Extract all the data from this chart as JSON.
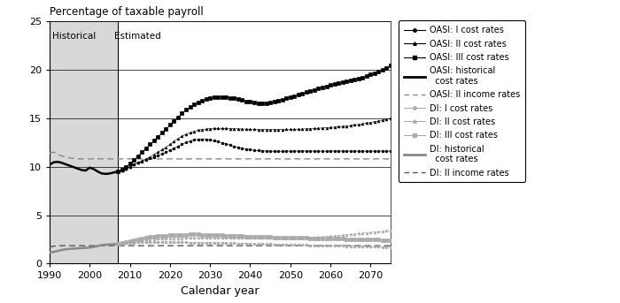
{
  "title": "Percentage of taxable payroll",
  "xlabel": "Calendar year",
  "xlim": [
    1990,
    2075
  ],
  "ylim": [
    0,
    25
  ],
  "yticks": [
    0,
    5,
    10,
    15,
    20,
    25
  ],
  "xticks": [
    1990,
    2000,
    2010,
    2020,
    2030,
    2040,
    2050,
    2060,
    2070
  ],
  "historical_end": 2007,
  "bg_historical": "#d8d8d8",
  "bg_estimated": "#ffffff",
  "oasi_hist_years": [
    1990,
    1991,
    1992,
    1993,
    1994,
    1995,
    1996,
    1997,
    1998,
    1999,
    2000,
    2001,
    2002,
    2003,
    2004,
    2005,
    2006,
    2007
  ],
  "oasi_hist_vals": [
    10.2,
    10.45,
    10.5,
    10.4,
    10.25,
    10.1,
    9.95,
    9.8,
    9.65,
    9.6,
    9.9,
    9.75,
    9.5,
    9.3,
    9.25,
    9.3,
    9.4,
    9.5
  ],
  "oasi_income_hist_years": [
    1990,
    1991,
    1992,
    1993,
    1994,
    1995,
    1996,
    1997,
    1998,
    1999,
    2000,
    2001,
    2002,
    2003,
    2004,
    2005,
    2006,
    2007
  ],
  "oasi_income_hist_vals": [
    11.4,
    11.5,
    11.3,
    11.1,
    11.0,
    10.9,
    10.85,
    10.8,
    10.8,
    10.8,
    10.8,
    10.8,
    10.8,
    10.8,
    10.8,
    10.8,
    10.8,
    10.8
  ],
  "years_est": [
    2007,
    2008,
    2009,
    2010,
    2011,
    2012,
    2013,
    2014,
    2015,
    2016,
    2017,
    2018,
    2019,
    2020,
    2021,
    2022,
    2023,
    2024,
    2025,
    2026,
    2027,
    2028,
    2029,
    2030,
    2031,
    2032,
    2033,
    2034,
    2035,
    2036,
    2037,
    2038,
    2039,
    2040,
    2041,
    2042,
    2043,
    2044,
    2045,
    2046,
    2047,
    2048,
    2049,
    2050,
    2051,
    2052,
    2053,
    2054,
    2055,
    2056,
    2057,
    2058,
    2059,
    2060,
    2061,
    2062,
    2063,
    2064,
    2065,
    2066,
    2067,
    2068,
    2069,
    2070,
    2071,
    2072,
    2073,
    2074,
    2075
  ],
  "oasi_I_est": [
    9.5,
    9.6,
    9.8,
    10.0,
    10.2,
    10.4,
    10.55,
    10.7,
    10.85,
    11.0,
    11.15,
    11.3,
    11.5,
    11.7,
    11.9,
    12.1,
    12.3,
    12.5,
    12.65,
    12.75,
    12.8,
    12.82,
    12.8,
    12.75,
    12.67,
    12.58,
    12.47,
    12.35,
    12.22,
    12.1,
    12.0,
    11.9,
    11.82,
    11.75,
    11.7,
    11.66,
    11.63,
    11.61,
    11.6,
    11.59,
    11.59,
    11.59,
    11.6,
    11.6,
    11.6,
    11.6,
    11.6,
    11.6,
    11.6,
    11.6,
    11.6,
    11.6,
    11.6,
    11.6,
    11.6,
    11.6,
    11.6,
    11.6,
    11.6,
    11.6,
    11.6,
    11.6,
    11.6,
    11.6,
    11.6,
    11.6,
    11.6,
    11.6,
    11.6
  ],
  "oasi_II_est": [
    9.5,
    9.6,
    9.8,
    10.0,
    10.2,
    10.4,
    10.6,
    10.8,
    11.0,
    11.25,
    11.5,
    11.75,
    12.0,
    12.3,
    12.6,
    12.9,
    13.15,
    13.35,
    13.5,
    13.65,
    13.75,
    13.83,
    13.88,
    13.92,
    13.94,
    13.95,
    13.95,
    13.94,
    13.93,
    13.91,
    13.9,
    13.88,
    13.87,
    13.86,
    13.85,
    13.84,
    13.84,
    13.84,
    13.84,
    13.84,
    13.84,
    13.84,
    13.85,
    13.85,
    13.86,
    13.87,
    13.88,
    13.9,
    13.92,
    13.94,
    13.96,
    13.99,
    14.02,
    14.05,
    14.08,
    14.12,
    14.16,
    14.2,
    14.25,
    14.3,
    14.36,
    14.42,
    14.49,
    14.56,
    14.64,
    14.72,
    14.8,
    14.9,
    15.0
  ],
  "oasi_III_est": [
    9.5,
    9.7,
    10.0,
    10.3,
    10.7,
    11.1,
    11.5,
    11.9,
    12.3,
    12.7,
    13.1,
    13.5,
    13.9,
    14.3,
    14.7,
    15.1,
    15.5,
    15.85,
    16.15,
    16.42,
    16.65,
    16.83,
    16.97,
    17.08,
    17.16,
    17.2,
    17.2,
    17.18,
    17.12,
    17.05,
    16.95,
    16.85,
    16.75,
    16.67,
    16.6,
    16.55,
    16.53,
    16.55,
    16.6,
    16.68,
    16.8,
    16.92,
    17.05,
    17.18,
    17.3,
    17.42,
    17.55,
    17.68,
    17.8,
    17.93,
    18.05,
    18.17,
    18.29,
    18.4,
    18.5,
    18.6,
    18.7,
    18.8,
    18.9,
    19.0,
    19.1,
    19.2,
    19.35,
    19.5,
    19.65,
    19.8,
    20.0,
    20.2,
    20.4
  ],
  "oasi_income_est_years": [
    2007,
    2075
  ],
  "oasi_income_est_vals": [
    10.8,
    10.8
  ],
  "di_hist_years": [
    1990,
    1991,
    1992,
    1993,
    1994,
    1995,
    1996,
    1997,
    1998,
    1999,
    2000,
    2001,
    2002,
    2003,
    2004,
    2005,
    2006,
    2007
  ],
  "di_hist_vals": [
    1.15,
    1.2,
    1.3,
    1.4,
    1.48,
    1.52,
    1.55,
    1.58,
    1.6,
    1.63,
    1.65,
    1.72,
    1.82,
    1.9,
    1.95,
    1.98,
    2.0,
    2.05
  ],
  "di_income_hist_years": [
    1990,
    1991,
    1992,
    1993,
    1994,
    1995,
    1996,
    1997,
    1998,
    1999,
    2000,
    2001,
    2002,
    2003,
    2004,
    2005,
    2006,
    2007
  ],
  "di_income_hist_vals": [
    1.7,
    1.8,
    1.85,
    1.85,
    1.85,
    1.85,
    1.85,
    1.85,
    1.85,
    1.85,
    1.85,
    1.85,
    1.85,
    1.85,
    1.85,
    1.85,
    1.85,
    1.85
  ],
  "di_I_est": [
    2.05,
    2.1,
    2.13,
    2.15,
    2.17,
    2.18,
    2.19,
    2.2,
    2.2,
    2.2,
    2.2,
    2.2,
    2.2,
    2.2,
    2.19,
    2.19,
    2.18,
    2.18,
    2.17,
    2.17,
    2.16,
    2.16,
    2.15,
    2.15,
    2.14,
    2.13,
    2.12,
    2.11,
    2.1,
    2.09,
    2.08,
    2.07,
    2.06,
    2.05,
    2.04,
    2.03,
    2.02,
    2.01,
    2.0,
    1.99,
    1.98,
    1.97,
    1.96,
    1.95,
    1.94,
    1.93,
    1.92,
    1.91,
    1.9,
    1.89,
    1.88,
    1.87,
    1.86,
    1.85,
    1.84,
    1.83,
    1.82,
    1.81,
    1.8,
    1.79,
    1.78,
    1.77,
    1.76,
    1.75,
    1.74,
    1.73,
    1.72,
    1.71,
    1.7
  ],
  "di_II_est": [
    2.05,
    2.1,
    2.18,
    2.25,
    2.32,
    2.38,
    2.43,
    2.47,
    2.5,
    2.52,
    2.55,
    2.57,
    2.58,
    2.6,
    2.61,
    2.62,
    2.63,
    2.64,
    2.65,
    2.65,
    2.65,
    2.65,
    2.65,
    2.65,
    2.65,
    2.65,
    2.65,
    2.65,
    2.65,
    2.65,
    2.65,
    2.65,
    2.65,
    2.65,
    2.65,
    2.65,
    2.65,
    2.65,
    2.65,
    2.65,
    2.65,
    2.65,
    2.65,
    2.65,
    2.65,
    2.66,
    2.67,
    2.68,
    2.7,
    2.72,
    2.74,
    2.77,
    2.8,
    2.83,
    2.86,
    2.9,
    2.94,
    2.98,
    3.02,
    3.06,
    3.1,
    3.14,
    3.18,
    3.22,
    3.26,
    3.3,
    3.34,
    3.38,
    3.42
  ],
  "di_III_est": [
    2.05,
    2.12,
    2.22,
    2.32,
    2.43,
    2.52,
    2.6,
    2.67,
    2.73,
    2.78,
    2.83,
    2.87,
    2.9,
    2.93,
    2.95,
    2.97,
    2.98,
    2.99,
    3.0,
    3.0,
    3.0,
    2.99,
    2.98,
    2.97,
    2.96,
    2.94,
    2.92,
    2.9,
    2.88,
    2.86,
    2.84,
    2.82,
    2.8,
    2.78,
    2.77,
    2.76,
    2.75,
    2.74,
    2.73,
    2.72,
    2.71,
    2.7,
    2.69,
    2.68,
    2.67,
    2.66,
    2.65,
    2.64,
    2.63,
    2.62,
    2.61,
    2.6,
    2.59,
    2.58,
    2.57,
    2.56,
    2.55,
    2.54,
    2.53,
    2.52,
    2.51,
    2.5,
    2.49,
    2.48,
    2.47,
    2.46,
    2.45,
    2.44,
    2.43
  ],
  "di_income_est_years": [
    2007,
    2075
  ],
  "di_income_est_vals": [
    1.85,
    1.85
  ],
  "colors": {
    "black": "#000000",
    "dark_gray": "#555555",
    "med_gray": "#888888",
    "light_gray": "#aaaaaa"
  }
}
